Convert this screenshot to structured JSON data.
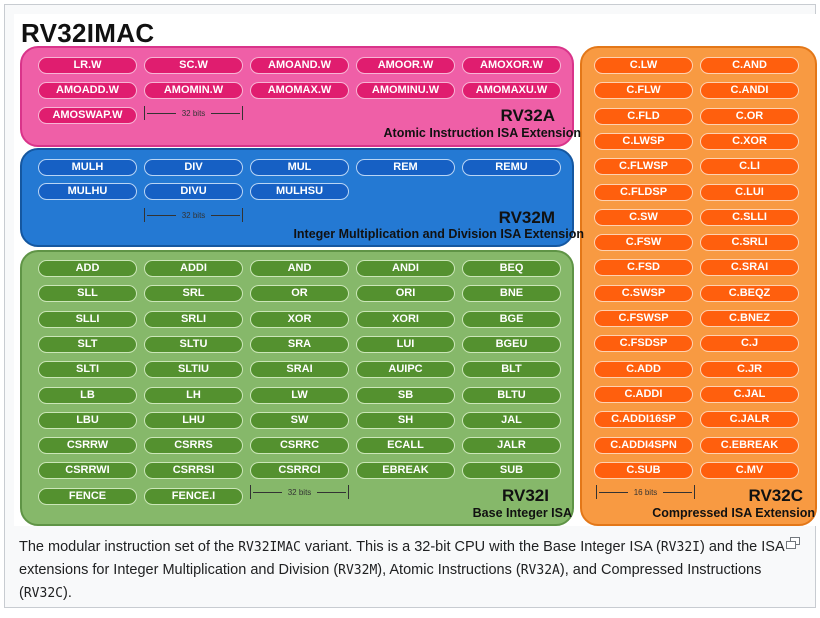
{
  "title": "RV32IMAC",
  "regions": {
    "rv32a": {
      "name": "RV32A",
      "subtitle": "Atomic Instruction ISA Extension",
      "width_label": "32 bits",
      "instructions": [
        "LR.W",
        "SC.W",
        "AMOAND.W",
        "AMOOR.W",
        "AMOXOR.W",
        "AMOADD.W",
        "AMOMIN.W",
        "AMOMAX.W",
        "AMOMINU.W",
        "AMOMAXU.W",
        "AMOSWAP.W"
      ]
    },
    "rv32m": {
      "name": "RV32M",
      "subtitle": "Integer Multiplication and Division ISA Extension",
      "width_label": "32 bits",
      "instructions": [
        "MULH",
        "DIV",
        "MUL",
        "REM",
        "REMU",
        "MULHU",
        "DIVU",
        "MULHSU"
      ]
    },
    "rv32i": {
      "name": "RV32I",
      "subtitle": "Base Integer ISA",
      "width_label": "32 bits",
      "instructions": [
        "ADD",
        "ADDI",
        "AND",
        "ANDI",
        "BEQ",
        "SLL",
        "SRL",
        "OR",
        "ORI",
        "BNE",
        "SLLI",
        "SRLI",
        "XOR",
        "XORI",
        "BGE",
        "SLT",
        "SLTU",
        "SRA",
        "LUI",
        "BGEU",
        "SLTI",
        "SLTIU",
        "SRAI",
        "AUIPC",
        "BLT",
        "LB",
        "LH",
        "LW",
        "SB",
        "BLTU",
        "LBU",
        "LHU",
        "SW",
        "SH",
        "JAL",
        "CSRRW",
        "CSRRS",
        "CSRRC",
        "ECALL",
        "JALR",
        "CSRRWI",
        "CSRRSI",
        "CSRRCI",
        "EBREAK",
        "SUB",
        "FENCE",
        "FENCE.I"
      ]
    },
    "rv32c": {
      "name": "RV32C",
      "subtitle": "Compressed ISA Extension",
      "width_label": "16 bits",
      "instructions": [
        "C.LW",
        "C.AND",
        "C.FLW",
        "C.ANDI",
        "C.FLD",
        "C.OR",
        "C.LWSP",
        "C.XOR",
        "C.FLWSP",
        "C.LI",
        "C.FLDSP",
        "C.LUI",
        "C.SW",
        "C.SLLI",
        "C.FSW",
        "C.SRLI",
        "C.FSD",
        "C.SRAI",
        "C.SWSP",
        "C.BEQZ",
        "C.FSWSP",
        "C.BNEZ",
        "C.FSDSP",
        "C.J",
        "C.ADD",
        "C.JR",
        "C.ADDI",
        "C.JAL",
        "C.ADDI16SP",
        "C.JALR",
        "C.ADDI4SPN",
        "C.EBREAK",
        "C.SUB",
        "C.MV"
      ]
    }
  },
  "colors": {
    "rv32a": "#e01d6f",
    "rv32m": "#1660c4",
    "rv32i": "#54912f",
    "rv32c": "#ff5f0d"
  },
  "caption": {
    "t1": "The modular instruction set of the ",
    "c1": "RV32IMAC",
    "t2": " variant. This is a 32-bit CPU with the Base Integer ISA (",
    "c2": "RV32I",
    "t3": ") and the ISA extensions for Integer Multiplication and Division (",
    "c3": "RV32M",
    "t4": "), Atomic Instructions (",
    "c4": "RV32A",
    "t5": "), and Compressed Instructions (",
    "c5": "RV32C",
    "t6": ")."
  },
  "enlarge_icon": "enlarge-icon"
}
